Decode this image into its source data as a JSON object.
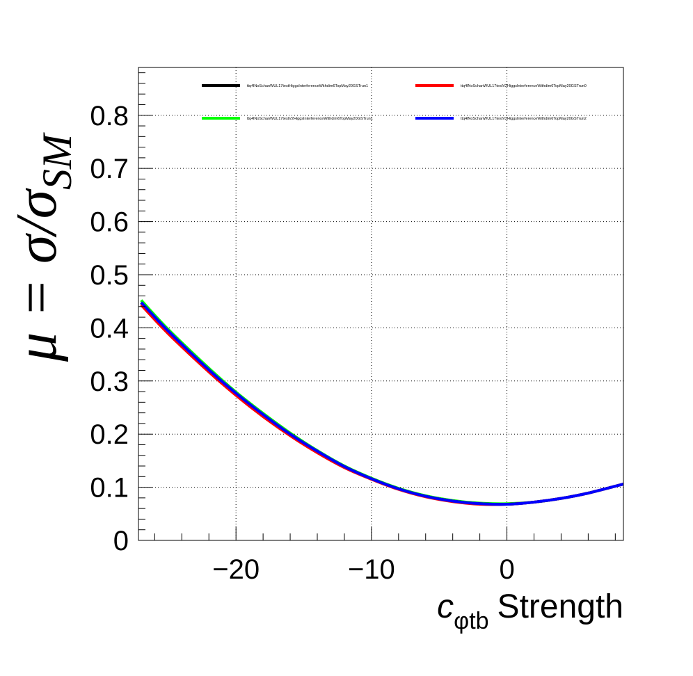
{
  "chart_data": {
    "type": "line",
    "title": "",
    "xlabel": {
      "symbol": "c",
      "subscript": "φtb",
      "text": "Strength"
    },
    "ylabel": {
      "prefix": "μ = σ/σ",
      "subscript": "SM"
    },
    "xlim": [
      -27.2,
      8.6
    ],
    "ylim": [
      0,
      0.89
    ],
    "xticks": [
      -20,
      -10,
      0
    ],
    "xtick_labels": [
      "−20",
      "−10",
      "0"
    ],
    "yticks": [
      0,
      0.1,
      0.2,
      0.3,
      0.4,
      0.5,
      0.6,
      0.7,
      0.8
    ],
    "ytick_labels": [
      "0",
      "0.1",
      "0.2",
      "0.3",
      "0.4",
      "0.5",
      "0.6",
      "0.7",
      "0.8"
    ],
    "grid": true,
    "legend_position": "top",
    "x": [
      -27,
      -25,
      -22,
      -20,
      -18,
      -16,
      -14,
      -12,
      -10,
      -8,
      -6,
      -4,
      -2,
      0,
      2,
      4,
      6,
      8.6
    ],
    "series": [
      {
        "name": "ttq4lNoSchanWUL17testHiggsInterferenceWithdim6TopMay20GSTrun1",
        "color": "#000000",
        "values": [
          0.447,
          0.393,
          0.32,
          0.276,
          0.236,
          0.2,
          0.167,
          0.139,
          0.116,
          0.097,
          0.083,
          0.074,
          0.069,
          0.068,
          0.072,
          0.079,
          0.089,
          0.106
        ]
      },
      {
        "name": "ttq4lNoSchanWUL17testV2HiggsInterferenceWithdim6TopMay20GSTrun0",
        "color": "#ff0000",
        "values": [
          0.443,
          0.389,
          0.317,
          0.273,
          0.233,
          0.197,
          0.165,
          0.137,
          0.115,
          0.096,
          0.082,
          0.073,
          0.068,
          0.068,
          0.072,
          0.079,
          0.089,
          0.106
        ]
      },
      {
        "name": "ttq4lNoSchanWUL17testV2HiggsInterferenceWithdim6TopMay20GSTrun1",
        "color": "#00ff00",
        "values": [
          0.452,
          0.397,
          0.324,
          0.279,
          0.239,
          0.202,
          0.169,
          0.14,
          0.117,
          0.098,
          0.084,
          0.075,
          0.07,
          0.069,
          0.072,
          0.079,
          0.089,
          0.106
        ]
      },
      {
        "name": "ttq4lNoSchanWUL17testV2HiggsInterferenceWithdim6TopMay20GSTrun2",
        "color": "#0000ff",
        "values": [
          0.448,
          0.394,
          0.321,
          0.277,
          0.237,
          0.2,
          0.168,
          0.139,
          0.116,
          0.097,
          0.083,
          0.074,
          0.069,
          0.068,
          0.072,
          0.079,
          0.089,
          0.106
        ]
      }
    ]
  }
}
